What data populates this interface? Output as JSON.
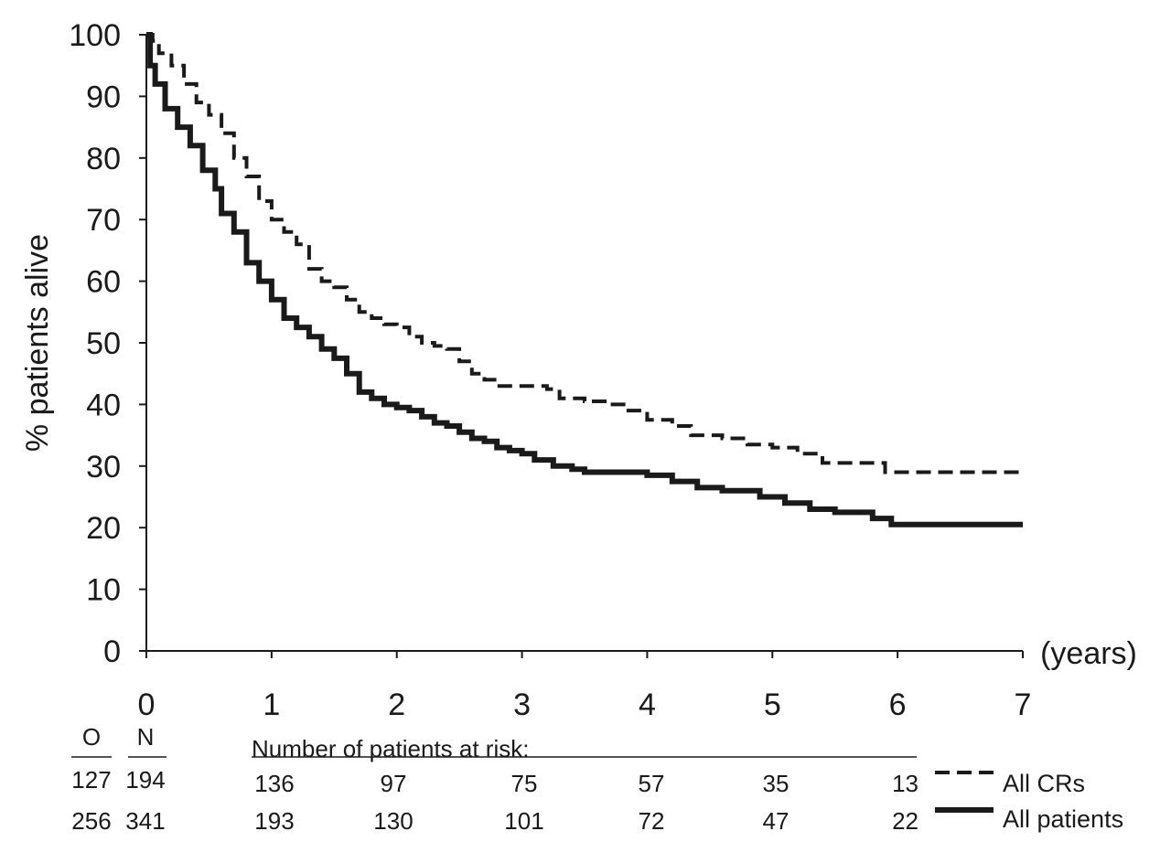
{
  "chart_data": {
    "type": "line",
    "title": "",
    "ylabel": "% patients alive",
    "xlabel": "(years)",
    "xlim": [
      0,
      7
    ],
    "ylim": [
      0,
      100
    ],
    "x_ticks": [
      "0",
      "1",
      "2",
      "3",
      "4",
      "5",
      "6",
      "7"
    ],
    "y_ticks": [
      "0",
      "10",
      "20",
      "30",
      "40",
      "50",
      "60",
      "70",
      "80",
      "90",
      "100"
    ],
    "grid": false,
    "series": [
      {
        "name": "All CRs",
        "style": "dashed",
        "color": "#1a1a1a",
        "points": [
          [
            0,
            100
          ],
          [
            0.05,
            99
          ],
          [
            0.1,
            97
          ],
          [
            0.2,
            95
          ],
          [
            0.3,
            92
          ],
          [
            0.4,
            89
          ],
          [
            0.5,
            87
          ],
          [
            0.6,
            84
          ],
          [
            0.7,
            80
          ],
          [
            0.8,
            77
          ],
          [
            0.9,
            73
          ],
          [
            1.0,
            70
          ],
          [
            1.1,
            68
          ],
          [
            1.2,
            66
          ],
          [
            1.3,
            62
          ],
          [
            1.4,
            60
          ],
          [
            1.5,
            59
          ],
          [
            1.6,
            57
          ],
          [
            1.7,
            55
          ],
          [
            1.8,
            54
          ],
          [
            1.9,
            53
          ],
          [
            2.0,
            52.5
          ],
          [
            2.1,
            51
          ],
          [
            2.2,
            50
          ],
          [
            2.3,
            49.5
          ],
          [
            2.4,
            49
          ],
          [
            2.5,
            47
          ],
          [
            2.6,
            45
          ],
          [
            2.7,
            44
          ],
          [
            2.8,
            43
          ],
          [
            3.0,
            43
          ],
          [
            3.2,
            42.5
          ],
          [
            3.3,
            41
          ],
          [
            3.5,
            40.5
          ],
          [
            3.7,
            40
          ],
          [
            3.85,
            39
          ],
          [
            4.0,
            37.5
          ],
          [
            4.2,
            36.5
          ],
          [
            4.35,
            35
          ],
          [
            4.6,
            34.5
          ],
          [
            4.8,
            33.5
          ],
          [
            5.0,
            33
          ],
          [
            5.2,
            32
          ],
          [
            5.4,
            30.5
          ],
          [
            5.7,
            30.5
          ],
          [
            5.9,
            29
          ],
          [
            6.5,
            29
          ],
          [
            7.0,
            29
          ]
        ]
      },
      {
        "name": "All patients",
        "style": "solid",
        "color": "#1a1a1a",
        "points": [
          [
            0,
            100
          ],
          [
            0.03,
            95
          ],
          [
            0.07,
            92
          ],
          [
            0.15,
            88
          ],
          [
            0.25,
            85
          ],
          [
            0.35,
            82
          ],
          [
            0.45,
            78
          ],
          [
            0.55,
            75
          ],
          [
            0.6,
            71
          ],
          [
            0.7,
            68
          ],
          [
            0.8,
            63
          ],
          [
            0.9,
            60
          ],
          [
            1.0,
            57
          ],
          [
            1.1,
            54
          ],
          [
            1.2,
            52.5
          ],
          [
            1.3,
            51
          ],
          [
            1.4,
            49
          ],
          [
            1.5,
            47.5
          ],
          [
            1.6,
            45
          ],
          [
            1.7,
            42
          ],
          [
            1.8,
            41
          ],
          [
            1.9,
            40
          ],
          [
            2.0,
            39.5
          ],
          [
            2.1,
            39
          ],
          [
            2.2,
            38
          ],
          [
            2.3,
            37
          ],
          [
            2.4,
            36.5
          ],
          [
            2.5,
            35.5
          ],
          [
            2.6,
            34.5
          ],
          [
            2.7,
            34
          ],
          [
            2.8,
            33
          ],
          [
            2.9,
            32.5
          ],
          [
            3.0,
            32
          ],
          [
            3.1,
            31
          ],
          [
            3.25,
            30
          ],
          [
            3.4,
            29.5
          ],
          [
            3.5,
            29
          ],
          [
            3.8,
            29
          ],
          [
            4.0,
            28.5
          ],
          [
            4.2,
            27.5
          ],
          [
            4.4,
            26.5
          ],
          [
            4.6,
            26
          ],
          [
            4.9,
            25
          ],
          [
            5.1,
            24
          ],
          [
            5.3,
            23
          ],
          [
            5.5,
            22.5
          ],
          [
            5.8,
            21.5
          ],
          [
            5.95,
            20.5
          ],
          [
            6.3,
            20.5
          ],
          [
            7.0,
            20.5
          ]
        ]
      }
    ]
  },
  "risk_table": {
    "title": "Number of patients at risk:",
    "col_o": "O",
    "col_n": "N",
    "rows": [
      {
        "o": "127",
        "n": "194",
        "values": [
          "136",
          "97",
          "75",
          "57",
          "35",
          "13"
        ],
        "legend": "All CRs"
      },
      {
        "o": "256",
        "n": "341",
        "values": [
          "193",
          "130",
          "101",
          "72",
          "47",
          "22"
        ],
        "legend": "All patients"
      }
    ]
  }
}
